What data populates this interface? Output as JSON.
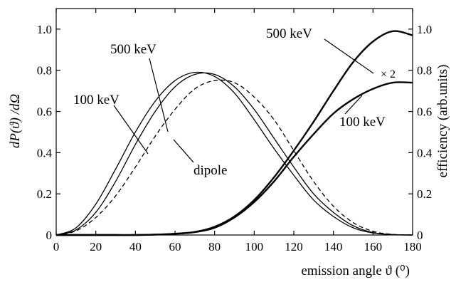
{
  "chart_data": {
    "type": "line",
    "title": "",
    "xlabel": "emission angle ϑ (⁰)",
    "ylabel_left": "dP(ϑ) /dΩ",
    "ylabel_right": "efficiency (arb.units)",
    "xlim": [
      0,
      180
    ],
    "ylim_left": [
      0,
      1.1
    ],
    "ylim_right": [
      0,
      1.1
    ],
    "x_ticks": [
      "0",
      "20",
      "40",
      "60",
      "80",
      "100",
      "120",
      "140",
      "160",
      "180"
    ],
    "y_ticks_left": [
      "0",
      "0.2",
      "0.4",
      "0.6",
      "0.8",
      "1.0"
    ],
    "y_ticks_right": [
      "0",
      "0.2",
      "0.4",
      "0.6",
      "0.8",
      "1.0"
    ],
    "grid": false,
    "x": [
      0,
      10,
      20,
      30,
      40,
      50,
      60,
      70,
      80,
      90,
      100,
      110,
      120,
      130,
      140,
      150,
      160,
      170,
      180
    ],
    "series": [
      {
        "name": "500 keV",
        "axis": "left",
        "style": "solid",
        "values": [
          0,
          0.035,
          0.15,
          0.32,
          0.5,
          0.65,
          0.75,
          0.79,
          0.77,
          0.69,
          0.56,
          0.42,
          0.29,
          0.17,
          0.09,
          0.035,
          0.01,
          0.002,
          0
        ]
      },
      {
        "name": "100 keV",
        "axis": "left",
        "style": "solid",
        "values": [
          0,
          0.025,
          0.11,
          0.26,
          0.44,
          0.6,
          0.72,
          0.78,
          0.78,
          0.72,
          0.61,
          0.47,
          0.33,
          0.2,
          0.11,
          0.045,
          0.012,
          0.002,
          0
        ]
      },
      {
        "name": "dipole",
        "axis": "left",
        "style": "dashed",
        "values": [
          0,
          0.02,
          0.085,
          0.19,
          0.33,
          0.48,
          0.61,
          0.71,
          0.75,
          0.74,
          0.67,
          0.56,
          0.41,
          0.26,
          0.14,
          0.06,
          0.018,
          0.003,
          0
        ]
      },
      {
        "name": "500 keV",
        "axis": "right",
        "style": "thick",
        "values": [
          0,
          0,
          0,
          0,
          0,
          0.002,
          0.006,
          0.015,
          0.04,
          0.09,
          0.17,
          0.28,
          0.41,
          0.55,
          0.7,
          0.84,
          0.94,
          0.99,
          0.97
        ]
      },
      {
        "name": "100 keV",
        "axis": "right",
        "style": "thick",
        "values": [
          0,
          0,
          0,
          0,
          0,
          0.002,
          0.006,
          0.014,
          0.035,
          0.085,
          0.16,
          0.26,
          0.38,
          0.49,
          0.59,
          0.66,
          0.71,
          0.74,
          0.74
        ]
      }
    ],
    "annotations": [
      {
        "text": "500 keV",
        "points_to_series": 0
      },
      {
        "text": "100 keV",
        "points_to_series": 1
      },
      {
        "text": "dipole",
        "points_to_series": 2
      },
      {
        "text": "500 keV",
        "points_to_series": 3
      },
      {
        "text": "× 2",
        "points_to_series": 4
      },
      {
        "text": "100 keV",
        "points_to_series": 4
      }
    ]
  }
}
